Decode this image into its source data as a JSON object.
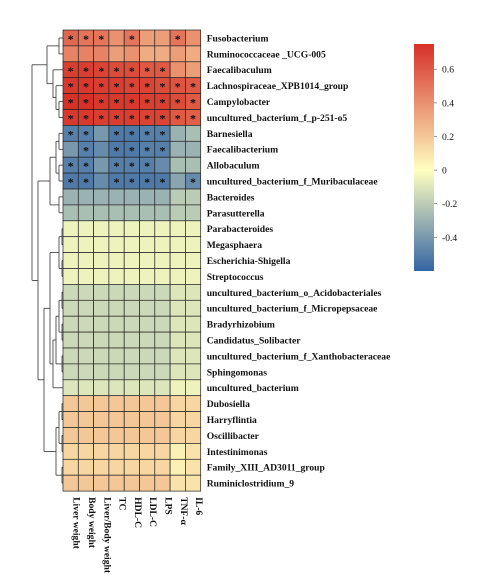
{
  "chart_data": {
    "type": "heatmap",
    "columns": [
      "Liver weight",
      "Body weight",
      "Liver/Body weight",
      "TC",
      "HDL-C",
      "LDL-C",
      "LPS",
      "TNF-α",
      "IL-6"
    ],
    "rows": [
      {
        "name": "Fusobacterium",
        "values": [
          0.55,
          0.5,
          0.5,
          0.4,
          0.5,
          0.35,
          0.35,
          0.5,
          0.4
        ],
        "stars": [
          1,
          1,
          1,
          0,
          1,
          0,
          0,
          1,
          0
        ]
      },
      {
        "name": "Ruminococcaceae _UCG-005",
        "values": [
          0.45,
          0.45,
          0.45,
          0.35,
          0.4,
          0.3,
          0.3,
          0.35,
          0.3
        ],
        "stars": [
          0,
          0,
          0,
          0,
          0,
          0,
          0,
          0,
          0
        ]
      },
      {
        "name": "Faecalibaculum",
        "values": [
          0.7,
          0.7,
          0.68,
          0.65,
          0.65,
          0.6,
          0.6,
          0.4,
          0.35
        ],
        "stars": [
          1,
          1,
          1,
          1,
          1,
          1,
          1,
          0,
          0
        ]
      },
      {
        "name": "Lachnospiraceae_XPB1014_group",
        "values": [
          0.72,
          0.72,
          0.7,
          0.7,
          0.68,
          0.68,
          0.65,
          0.62,
          0.6
        ],
        "stars": [
          1,
          1,
          1,
          1,
          1,
          1,
          1,
          1,
          1
        ]
      },
      {
        "name": "Campylobacter",
        "values": [
          0.75,
          0.75,
          0.72,
          0.72,
          0.72,
          0.7,
          0.7,
          0.65,
          0.6
        ],
        "stars": [
          1,
          1,
          1,
          1,
          1,
          1,
          1,
          1,
          1
        ]
      },
      {
        "name": "uncultured_bacterium_f_p-251-o5",
        "values": [
          0.72,
          0.72,
          0.7,
          0.7,
          0.7,
          0.68,
          0.68,
          0.6,
          0.58
        ],
        "stars": [
          1,
          1,
          1,
          1,
          1,
          1,
          1,
          1,
          1
        ]
      },
      {
        "name": "Barnesiella",
        "values": [
          -0.5,
          -0.5,
          -0.4,
          -0.52,
          -0.52,
          -0.5,
          -0.5,
          -0.3,
          -0.25
        ],
        "stars": [
          1,
          1,
          0,
          1,
          1,
          1,
          1,
          0,
          0
        ]
      },
      {
        "name": "Faecalibacterium",
        "values": [
          -0.4,
          -0.5,
          -0.45,
          -0.52,
          -0.52,
          -0.5,
          -0.5,
          -0.3,
          -0.3
        ],
        "stars": [
          0,
          1,
          0,
          1,
          1,
          1,
          1,
          0,
          0
        ]
      },
      {
        "name": "Allobaculum",
        "values": [
          -0.5,
          -0.5,
          -0.4,
          -0.5,
          -0.5,
          -0.5,
          -0.45,
          -0.25,
          -0.25
        ],
        "stars": [
          1,
          1,
          0,
          1,
          1,
          1,
          0,
          0,
          0
        ]
      },
      {
        "name": "uncultured_bacterium_f_Muribaculaceae",
        "values": [
          -0.52,
          -0.52,
          -0.45,
          -0.52,
          -0.52,
          -0.52,
          -0.52,
          -0.35,
          -0.45
        ],
        "stars": [
          1,
          1,
          0,
          1,
          1,
          1,
          1,
          0,
          1
        ]
      },
      {
        "name": "Bacteroides",
        "values": [
          -0.3,
          -0.3,
          -0.3,
          -0.3,
          -0.3,
          -0.3,
          -0.3,
          -0.2,
          -0.2
        ],
        "stars": [
          0,
          0,
          0,
          0,
          0,
          0,
          0,
          0,
          0
        ]
      },
      {
        "name": "Parasutterella",
        "values": [
          -0.25,
          -0.25,
          -0.25,
          -0.25,
          -0.25,
          -0.25,
          -0.25,
          -0.2,
          -0.2
        ],
        "stars": [
          0,
          0,
          0,
          0,
          0,
          0,
          0,
          0,
          0
        ]
      },
      {
        "name": "Parabacteroides",
        "values": [
          -0.05,
          -0.05,
          -0.05,
          -0.05,
          -0.05,
          -0.05,
          -0.05,
          -0.05,
          -0.05
        ],
        "stars": [
          0,
          0,
          0,
          0,
          0,
          0,
          0,
          0,
          0
        ]
      },
      {
        "name": "Megasphaera",
        "values": [
          -0.05,
          -0.05,
          -0.05,
          -0.05,
          -0.05,
          -0.05,
          -0.05,
          -0.05,
          -0.05
        ],
        "stars": [
          0,
          0,
          0,
          0,
          0,
          0,
          0,
          0,
          0
        ]
      },
      {
        "name": "Escherichia-Shigella",
        "values": [
          -0.05,
          -0.05,
          -0.05,
          -0.05,
          -0.05,
          -0.05,
          -0.05,
          -0.05,
          -0.05
        ],
        "stars": [
          0,
          0,
          0,
          0,
          0,
          0,
          0,
          0,
          0
        ]
      },
      {
        "name": "Streptococcus",
        "values": [
          -0.05,
          -0.05,
          -0.05,
          -0.05,
          -0.05,
          -0.05,
          -0.05,
          -0.05,
          -0.05
        ],
        "stars": [
          0,
          0,
          0,
          0,
          0,
          0,
          0,
          0,
          0
        ]
      },
      {
        "name": "uncultured_bacterium_o_Acidobacteriales",
        "values": [
          -0.15,
          -0.15,
          -0.15,
          -0.15,
          -0.15,
          -0.15,
          -0.15,
          -0.1,
          -0.1
        ],
        "stars": [
          0,
          0,
          0,
          0,
          0,
          0,
          0,
          0,
          0
        ]
      },
      {
        "name": "uncultured_bacterium_f_Micropepsaceae",
        "values": [
          -0.15,
          -0.15,
          -0.15,
          -0.15,
          -0.15,
          -0.15,
          -0.15,
          -0.1,
          -0.1
        ],
        "stars": [
          0,
          0,
          0,
          0,
          0,
          0,
          0,
          0,
          0
        ]
      },
      {
        "name": "Bradyrhizobium",
        "values": [
          -0.15,
          -0.15,
          -0.15,
          -0.15,
          -0.15,
          -0.15,
          -0.15,
          -0.1,
          -0.1
        ],
        "stars": [
          0,
          0,
          0,
          0,
          0,
          0,
          0,
          0,
          0
        ]
      },
      {
        "name": "Candidatus_Solibacter",
        "values": [
          -0.15,
          -0.15,
          -0.15,
          -0.15,
          -0.15,
          -0.15,
          -0.15,
          -0.1,
          -0.1
        ],
        "stars": [
          0,
          0,
          0,
          0,
          0,
          0,
          0,
          0,
          0
        ]
      },
      {
        "name": "uncultured_bacterium_f_Xanthobacteraceae",
        "values": [
          -0.15,
          -0.15,
          -0.15,
          -0.15,
          -0.15,
          -0.15,
          -0.15,
          -0.1,
          -0.1
        ],
        "stars": [
          0,
          0,
          0,
          0,
          0,
          0,
          0,
          0,
          0
        ]
      },
      {
        "name": "Sphingomonas",
        "values": [
          -0.15,
          -0.15,
          -0.15,
          -0.15,
          -0.15,
          -0.15,
          -0.15,
          -0.1,
          -0.1
        ],
        "stars": [
          0,
          0,
          0,
          0,
          0,
          0,
          0,
          0,
          0
        ]
      },
      {
        "name": "uncultured_bacterium",
        "values": [
          -0.1,
          -0.1,
          -0.1,
          -0.1,
          -0.1,
          -0.1,
          -0.1,
          -0.05,
          -0.05
        ],
        "stars": [
          0,
          0,
          0,
          0,
          0,
          0,
          0,
          0,
          0
        ]
      },
      {
        "name": "Dubosiella",
        "values": [
          0.2,
          0.2,
          0.2,
          0.2,
          0.2,
          0.2,
          0.2,
          0.15,
          0.15
        ],
        "stars": [
          0,
          0,
          0,
          0,
          0,
          0,
          0,
          0,
          0
        ]
      },
      {
        "name": "Harryflintia",
        "values": [
          0.2,
          0.2,
          0.2,
          0.2,
          0.2,
          0.2,
          0.2,
          0.15,
          0.15
        ],
        "stars": [
          0,
          0,
          0,
          0,
          0,
          0,
          0,
          0,
          0
        ]
      },
      {
        "name": "Oscillibacter",
        "values": [
          0.2,
          0.2,
          0.2,
          0.2,
          0.2,
          0.2,
          0.2,
          0.15,
          0.15
        ],
        "stars": [
          0,
          0,
          0,
          0,
          0,
          0,
          0,
          0,
          0
        ]
      },
      {
        "name": "Intestinimonas",
        "values": [
          0.15,
          0.15,
          0.15,
          0.15,
          0.15,
          0.15,
          0.15,
          0.05,
          0.1
        ],
        "stars": [
          0,
          0,
          0,
          0,
          0,
          0,
          0,
          0,
          0
        ]
      },
      {
        "name": "Family_XIII_AD3011_group",
        "values": [
          0.15,
          0.15,
          0.15,
          0.15,
          0.15,
          0.15,
          0.15,
          0.05,
          0.1
        ],
        "stars": [
          0,
          0,
          0,
          0,
          0,
          0,
          0,
          0,
          0
        ]
      },
      {
        "name": "Ruminiclostridium_9",
        "values": [
          0.2,
          0.2,
          0.2,
          0.2,
          0.2,
          0.2,
          0.2,
          0.1,
          0.1
        ],
        "stars": [
          0,
          0,
          0,
          0,
          0,
          0,
          0,
          0,
          0
        ]
      }
    ],
    "significance_marker": "*",
    "scale": {
      "min": -0.6,
      "max": 0.75,
      "ticks": [
        0.6,
        0.4,
        0.2,
        0,
        -0.2,
        -0.4
      ],
      "tick_labels": [
        "0.6",
        "0.4",
        "0.2",
        "0",
        "-0.2",
        "-0.4"
      ],
      "colors": [
        "#3465a4",
        "#ffffbf",
        "#d73027"
      ]
    },
    "dendrogram": true,
    "grid": true,
    "legend_position": "right"
  }
}
